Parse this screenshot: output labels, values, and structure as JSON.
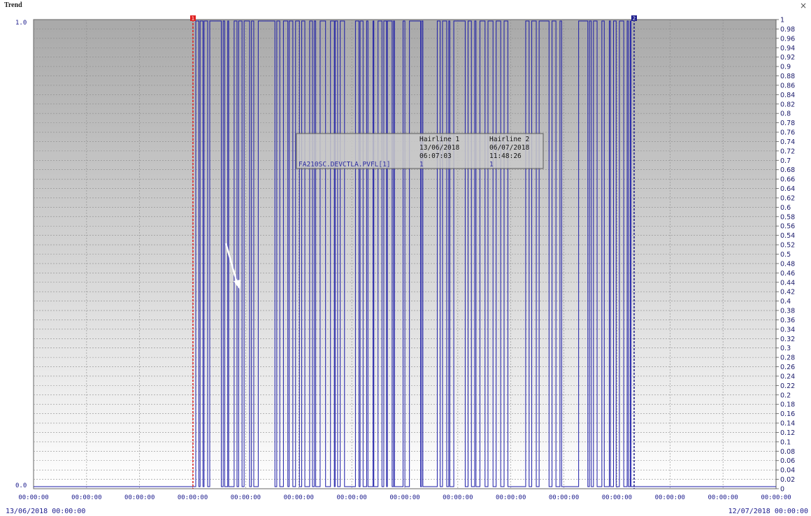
{
  "window": {
    "title": "Trend",
    "close_glyph": "×",
    "close_icon": "close-icon"
  },
  "axes": {
    "left_top": "1.0",
    "left_bottom": "0.0",
    "right_ticks": [
      "1",
      "0.98",
      "0.96",
      "0.94",
      "0.92",
      "0.9",
      "0.88",
      "0.86",
      "0.84",
      "0.82",
      "0.8",
      "0.78",
      "0.76",
      "0.74",
      "0.72",
      "0.7",
      "0.68",
      "0.66",
      "0.64",
      "0.62",
      "0.6",
      "0.58",
      "0.56",
      "0.54",
      "0.52",
      "0.5",
      "0.48",
      "0.46",
      "0.44",
      "0.42",
      "0.4",
      "0.38",
      "0.36",
      "0.34",
      "0.32",
      "0.3",
      "0.28",
      "0.26",
      "0.24",
      "0.22",
      "0.2",
      "0.18",
      "0.16",
      "0.14",
      "0.12",
      "0.1",
      "0.08",
      "0.06",
      "0.04",
      "0.02",
      "0"
    ],
    "x_tick_labels": [
      "00:00:00",
      "00:00:00",
      "00:00:00",
      "00:00:00",
      "00:00:00",
      "00:00:00",
      "00:00:00",
      "00:00:00",
      "00:00:00",
      "00:00:00",
      "00:00:00",
      "00:00:00",
      "00:00:00",
      "00:00:00",
      "00:00:00"
    ],
    "start_date": "13/06/2018 00:00:00",
    "end_date": "12/07/2018 00:00:00"
  },
  "hairlines": [
    {
      "label": "1",
      "color": "#e02020",
      "date": "13/06/2018",
      "time": "06:07:03",
      "value": "1"
    },
    {
      "label": "2",
      "color": "#1c1c8c",
      "date": "06/07/2018",
      "time": "11:48:26",
      "value": "1"
    }
  ],
  "tooltip": {
    "header_1": "Hairline 1",
    "header_2": "Hairline 2",
    "tag": "FA210SC.DEVCTLA.PVFL[1]"
  },
  "colors": {
    "trace": "#1c1ca8",
    "grid": "#8c8c8c",
    "label": "#1a1a8c"
  }
}
